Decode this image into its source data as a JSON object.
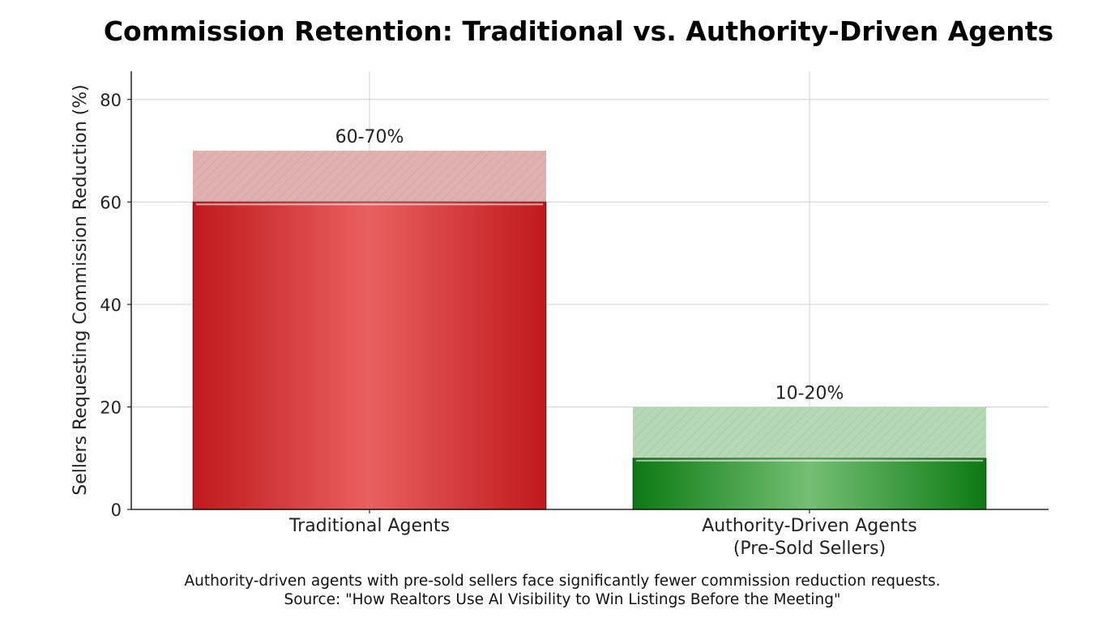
{
  "chart_data": {
    "type": "bar",
    "title": "Commission Retention: Traditional vs. Authority-Driven Agents",
    "ylabel": "Sellers Requesting Commission Reduction (%)",
    "xlabel": "",
    "ylim": [
      0,
      85.5
    ],
    "yticks": [
      0,
      20,
      40,
      60,
      80
    ],
    "grid": true,
    "categories": [
      {
        "lines": [
          "Traditional Agents"
        ]
      },
      {
        "lines": [
          "Authority-Driven Agents",
          "(Pre-Sold Sellers)"
        ]
      }
    ],
    "bars": [
      {
        "low": 60,
        "high": 70,
        "label": "60-70%",
        "color": "#c0191c",
        "highlight": "#e96060",
        "range_color": "#e3b0b0"
      },
      {
        "low": 10,
        "high": 20,
        "label": "10-20%",
        "color": "#0c7a12",
        "highlight": "#74bf74",
        "range_color": "#b5d9b5"
      }
    ],
    "caption": [
      "Authority-driven agents with pre-sold sellers face significantly fewer commission reduction requests.",
      "Source: \"How Realtors Use AI Visibility to Win Listings Before the Meeting\""
    ]
  }
}
